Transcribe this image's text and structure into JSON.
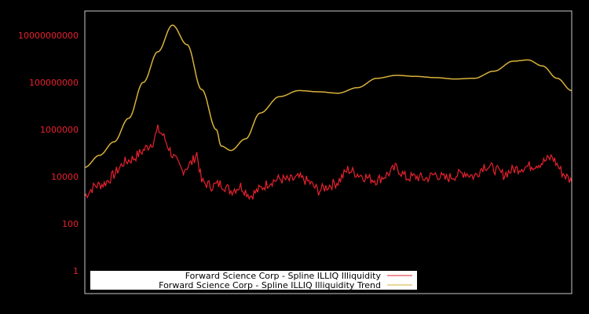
{
  "chart_data": {
    "type": "line",
    "title": "",
    "xlabel": "",
    "ylabel": "",
    "yscale": "log",
    "ylim": [
      0.1,
      100000000000
    ],
    "y_ticks": [
      {
        "value": 1,
        "label": "1"
      },
      {
        "value": 100,
        "label": "100"
      },
      {
        "value": 10000,
        "label": "10000"
      },
      {
        "value": 1000000,
        "label": "1000000"
      },
      {
        "value": 100000000,
        "label": "100000000"
      },
      {
        "value": 10000000000,
        "label": "10000000000"
      }
    ],
    "grid": false,
    "legend_position": "bottom-left-inside",
    "series": [
      {
        "name": "Forward Science Corp - Spline ILLIQ Illiquidity",
        "color": "#e8212e",
        "x_frac": [
          0.0,
          0.02,
          0.04,
          0.06,
          0.08,
          0.1,
          0.12,
          0.14,
          0.15,
          0.16,
          0.18,
          0.2,
          0.22,
          0.23,
          0.24,
          0.26,
          0.28,
          0.3,
          0.32,
          0.34,
          0.36,
          0.38,
          0.4,
          0.42,
          0.44,
          0.46,
          0.48,
          0.5,
          0.52,
          0.54,
          0.56,
          0.58,
          0.6,
          0.62,
          0.64,
          0.66,
          0.68,
          0.7,
          0.72,
          0.74,
          0.76,
          0.78,
          0.8,
          0.82,
          0.84,
          0.86,
          0.88,
          0.9,
          0.92,
          0.94,
          0.96,
          0.98,
          1.0
        ],
        "values": [
          1500,
          4000,
          5000,
          12000,
          40000,
          60000,
          130000,
          300000,
          1000000,
          600000,
          80000,
          18000,
          40000,
          100000,
          6000,
          4000,
          5000,
          2500,
          4000,
          1500,
          3000,
          6000,
          8000,
          7000,
          9000,
          6000,
          2500,
          4000,
          6000,
          20000,
          13000,
          9000,
          7000,
          12000,
          25000,
          9000,
          10000,
          8000,
          13000,
          8000,
          11000,
          15000,
          10000,
          30000,
          22000,
          12000,
          20000,
          25000,
          30000,
          40000,
          70000,
          15000,
          6000
        ]
      },
      {
        "name": "Forward Science Corp - Spline ILLIQ Illiquidity Trend",
        "color": "#d9b23a",
        "x_frac": [
          0.0,
          0.03,
          0.06,
          0.09,
          0.12,
          0.15,
          0.18,
          0.21,
          0.24,
          0.27,
          0.28,
          0.3,
          0.33,
          0.36,
          0.4,
          0.44,
          0.48,
          0.52,
          0.56,
          0.6,
          0.64,
          0.68,
          0.72,
          0.76,
          0.8,
          0.84,
          0.88,
          0.91,
          0.94,
          0.97,
          1.0
        ],
        "values": [
          25000,
          80000,
          300000,
          3000000,
          100000000,
          2000000000,
          27000000000,
          4000000000,
          50000000,
          1000000,
          200000,
          130000,
          400000,
          5000000,
          25000000,
          45000000,
          40000000,
          35000000,
          60000000,
          150000000,
          200000000,
          180000000,
          160000000,
          140000000,
          150000000,
          300000000,
          800000000,
          900000000,
          500000000,
          150000000,
          45000000
        ]
      }
    ]
  },
  "legend": {
    "items": [
      {
        "label": "Forward Science Corp - Spline ILLIQ Illiquidity",
        "color": "#e8212e"
      },
      {
        "label": "Forward Science Corp - Spline ILLIQ Illiquidity Trend",
        "color": "#d9b23a"
      }
    ]
  }
}
